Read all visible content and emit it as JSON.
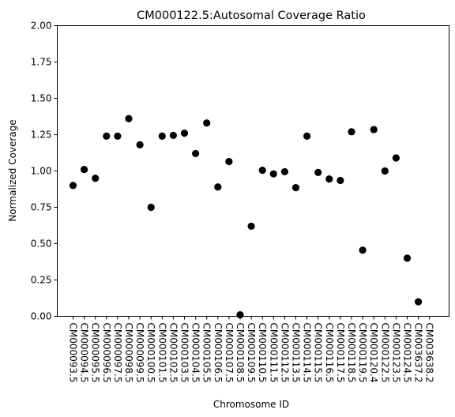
{
  "chart_data": {
    "type": "scatter",
    "title": "CM000122.5:Autosomal Coverage Ratio",
    "xlabel": "Chromosome ID",
    "ylabel": "Normalized Coverage",
    "ylim": [
      0,
      2
    ],
    "yticks": [
      "0.00",
      "0.25",
      "0.50",
      "0.75",
      "1.00",
      "1.25",
      "1.50",
      "1.75",
      "2.00"
    ],
    "grid": false,
    "legend": "none",
    "marker_color": "#000000",
    "categories": [
      "CM000093.5",
      "CM000094.5",
      "CM000095.5",
      "CM000096.5",
      "CM000097.5",
      "CM000098.5",
      "CM000099.5",
      "CM000100.5",
      "CM000101.5",
      "CM000102.5",
      "CM000103.5",
      "CM000104.5",
      "CM000105.5",
      "CM000106.5",
      "CM000107.5",
      "CM000108.5",
      "CM000109.5",
      "CM000110.5",
      "CM000111.5",
      "CM000112.5",
      "CM000113.5",
      "CM000114.5",
      "CM000115.5",
      "CM000116.5",
      "CM000117.5",
      "CM000118.5",
      "CM000119.5",
      "CM000120.4",
      "CM000122.5",
      "CM000123.5",
      "CM000124.5",
      "CM003637.2",
      "CM003638.2"
    ],
    "values": [
      0.9,
      1.01,
      0.95,
      1.24,
      1.24,
      1.36,
      1.18,
      0.75,
      1.24,
      1.245,
      1.26,
      1.12,
      1.33,
      0.89,
      1.065,
      0.01,
      0.62,
      1.005,
      0.98,
      0.995,
      0.885,
      1.24,
      0.99,
      0.945,
      0.935,
      1.27,
      0.455,
      1.285,
      1.0,
      1.09,
      0.4,
      0.1,
      null
    ]
  }
}
